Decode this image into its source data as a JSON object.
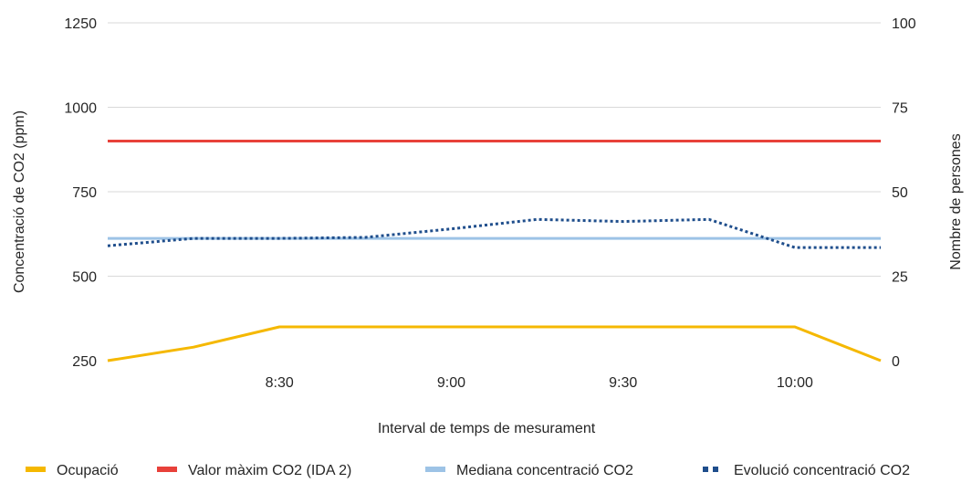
{
  "chart_data": {
    "type": "line",
    "title": "",
    "xlabel": "Interval de temps de mesurament",
    "ylabel": "Concentració de CO2 (ppm)",
    "y2label": "Nombre de persones",
    "x_tick_labels": [
      "8:30",
      "9:00",
      "9:30",
      "10:00"
    ],
    "y_ticks": [
      "250",
      "500",
      "750",
      "1000",
      "1250"
    ],
    "y2_ticks": [
      "0",
      "25",
      "50",
      "75",
      "100"
    ],
    "ylim": [
      250,
      1250
    ],
    "y2lim": [
      0,
      100
    ],
    "x_domain": [
      "8:00",
      "10:15"
    ],
    "grid": true,
    "legend_position": "bottom",
    "series": [
      {
        "name": "Ocupació",
        "axis": "right",
        "style": "solid",
        "color": "#F5B800",
        "x": [
          "8:00",
          "8:15",
          "8:30",
          "9:00",
          "9:30",
          "10:00",
          "10:15"
        ],
        "values": [
          0,
          4,
          10,
          10,
          10,
          10,
          0
        ]
      },
      {
        "name": "Valor màxim CO2 (IDA 2)",
        "axis": "left",
        "style": "solid",
        "color": "#E8413A",
        "x": [
          "8:00",
          "10:15"
        ],
        "values": [
          900,
          900
        ]
      },
      {
        "name": "Mediana concentració CO2",
        "axis": "left",
        "style": "solid",
        "color": "#9DC3E6",
        "x": [
          "8:00",
          "10:15"
        ],
        "values": [
          612,
          612
        ]
      },
      {
        "name": "Evolució concentració CO2",
        "axis": "left",
        "style": "dotted",
        "color": "#1F4E8C",
        "x": [
          "8:00",
          "8:15",
          "8:30",
          "8:45",
          "9:00",
          "9:15",
          "9:30",
          "9:45",
          "10:00",
          "10:15"
        ],
        "values": [
          590,
          612,
          612,
          615,
          640,
          668,
          662,
          668,
          585,
          585
        ]
      }
    ]
  }
}
